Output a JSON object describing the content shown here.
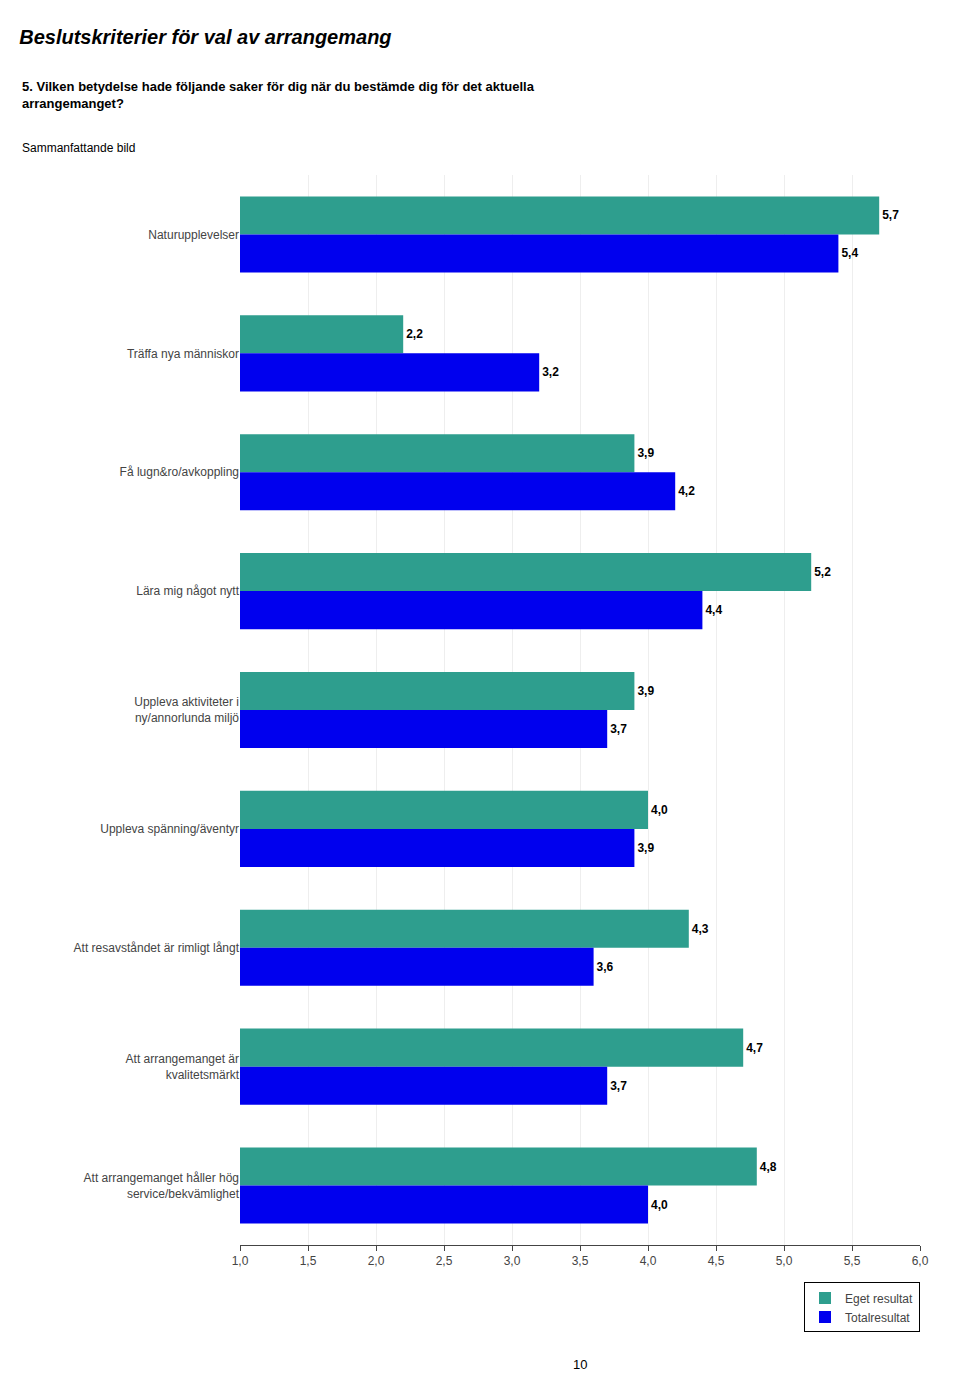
{
  "chart_data": {
    "type": "bar",
    "orientation": "horizontal",
    "title": "Beslutskriterier för val av arrangemang",
    "subtitle": "5. Vilken betydelse hade följande saker för dig när du bestämde dig för det aktuella\narrangemanget?",
    "annotations": [
      "Sammanfattande bild",
      "10"
    ],
    "categories": [
      "Naturupplevelser",
      "Träffa nya människor",
      "Få lugn&ro/avkoppling",
      "Lära mig något nytt",
      "Uppleva aktiviteter i\nny/annorlunda miljö",
      "Uppleva spänning/äventyr",
      "Att resavståndet är rimligt långt",
      "Att arrangemanget är\nkvalitetsmärkt",
      "Att arrangemanget håller hög\nservice/bekvämlighet"
    ],
    "series": [
      {
        "name": "Eget resultat",
        "color": "#2E9E8E",
        "values": [
          5.7,
          2.2,
          3.9,
          5.2,
          3.9,
          4.0,
          4.3,
          4.7,
          4.8
        ],
        "value_labels": [
          "5,7",
          "2,2",
          "3,9",
          "5,2",
          "3,9",
          "4,0",
          "4,3",
          "4,7",
          "4,8"
        ]
      },
      {
        "name": "Totalresultat",
        "color": "#0000EE",
        "values": [
          5.4,
          3.2,
          4.2,
          4.4,
          3.7,
          3.9,
          3.6,
          3.7,
          4.0
        ],
        "value_labels": [
          "5,4",
          "3,2",
          "4,2",
          "4,4",
          "3,7",
          "3,9",
          "3,6",
          "3,7",
          "4,0"
        ]
      }
    ],
    "xlim": [
      1.0,
      6.0
    ],
    "xticks": [
      {
        "value": 1.0,
        "label": "1,0"
      },
      {
        "value": 1.5,
        "label": "1,5"
      },
      {
        "value": 2.0,
        "label": "2,0"
      },
      {
        "value": 2.5,
        "label": "2,5"
      },
      {
        "value": 3.0,
        "label": "3,0"
      },
      {
        "value": 3.5,
        "label": "3,5"
      },
      {
        "value": 4.0,
        "label": "4,0"
      },
      {
        "value": 4.5,
        "label": "4,5"
      },
      {
        "value": 5.0,
        "label": "5,0"
      },
      {
        "value": 5.5,
        "label": "5,5"
      },
      {
        "value": 6.0,
        "label": "6,0"
      }
    ],
    "grid": true,
    "legend": "lower right",
    "data_labels": true
  }
}
